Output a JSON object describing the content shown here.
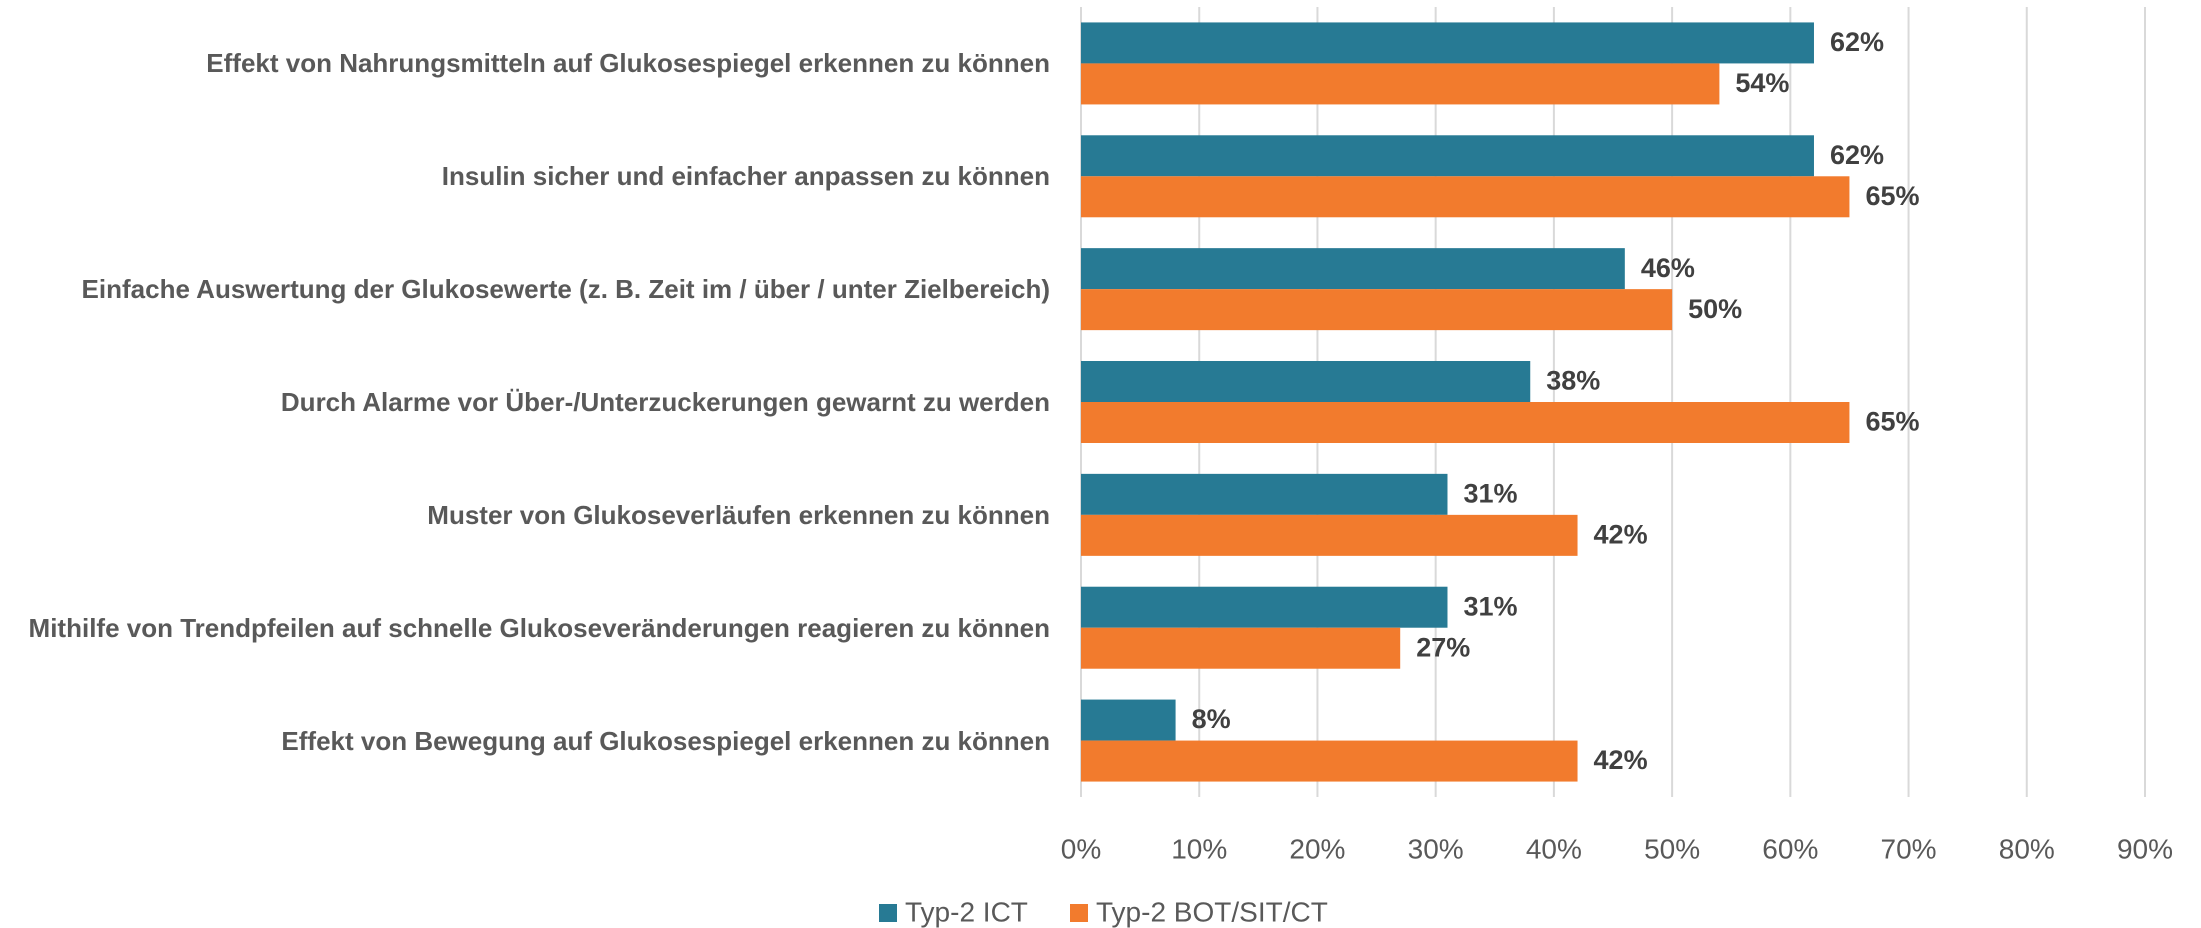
{
  "chart_data": {
    "type": "bar",
    "orientation": "horizontal",
    "categories": [
      "Effekt von Nahrungsmitteln auf Glukosespiegel erkennen zu können",
      "Insulin sicher und einfacher anpassen zu können",
      "Einfache Auswertung der Glukosewerte (z. B. Zeit im / über / unter Zielbereich)",
      "Durch Alarme vor Über-/Unterzuckerungen gewarnt zu werden",
      "Muster von Glukoseverläufen erkennen zu können",
      "Mithilfe von Trendpfeilen auf schnelle Glukoseveränderungen reagieren zu können",
      "Effekt von Bewegung auf Glukosespiegel erkennen zu können"
    ],
    "series": [
      {
        "name": "Typ-2 ICT",
        "color": "#277a94",
        "values": [
          62,
          62,
          46,
          38,
          31,
          31,
          8
        ],
        "value_labels": [
          "62%",
          "62%",
          "46%",
          "38%",
          "31%",
          "31%",
          "8%"
        ]
      },
      {
        "name": "Typ-2 BOT/SIT/CT",
        "color": "#f27b2d",
        "values": [
          54,
          65,
          50,
          65,
          42,
          27,
          42
        ],
        "value_labels": [
          "54%",
          "65%",
          "50%",
          "65%",
          "42%",
          "27%",
          "42%"
        ]
      }
    ],
    "xlim": [
      0,
      90
    ],
    "xticks": [
      {
        "value": 0,
        "label": "0%"
      },
      {
        "value": 10,
        "label": "10%"
      },
      {
        "value": 20,
        "label": "20%"
      },
      {
        "value": 30,
        "label": "30%"
      },
      {
        "value": 40,
        "label": "40%"
      },
      {
        "value": 50,
        "label": "50%"
      },
      {
        "value": 60,
        "label": "60%"
      },
      {
        "value": 70,
        "label": "70%"
      },
      {
        "value": 80,
        "label": "80%"
      },
      {
        "value": 90,
        "label": "90%"
      }
    ],
    "grid": true,
    "legend": "bottom"
  }
}
